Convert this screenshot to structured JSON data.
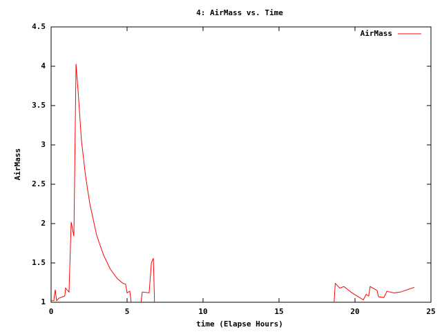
{
  "chart_data": {
    "type": "line",
    "title": "4: AirMass vs. Time",
    "x_label": "time (Elapse Hours)",
    "y_label": "AirMass",
    "x": [
      0,
      0.18,
      0.27,
      0.36,
      0.5,
      0.9,
      0.95,
      1.18,
      1.32,
      1.5,
      1.64,
      1.77,
      2.0,
      2.27,
      2.55,
      3.0,
      3.45,
      3.9,
      4.36,
      4.73,
      4.9,
      5.0,
      5.18,
      5.27,
      5.4,
      5.85,
      6.0,
      6.45,
      6.6,
      6.73,
      6.82,
      18.6,
      18.7,
      18.9,
      19.0,
      19.27,
      19.8,
      20.55,
      20.73,
      20.9,
      21.0,
      21.45,
      21.55,
      21.9,
      22.1,
      22.55,
      23.0,
      23.9
    ],
    "series": [
      {
        "name": "AirMass",
        "color": "#ff0000",
        "values": [
          1.02,
          1.02,
          1.16,
          1.02,
          1.05,
          1.08,
          1.18,
          1.13,
          2.02,
          1.84,
          4.03,
          3.7,
          3.05,
          2.6,
          2.25,
          1.85,
          1.6,
          1.42,
          1.3,
          1.24,
          1.23,
          1.12,
          1.14,
          1.0,
          0.9,
          0.9,
          1.13,
          1.12,
          1.5,
          1.56,
          0.9,
          0.9,
          1.24,
          1.2,
          1.18,
          1.2,
          1.12,
          1.03,
          1.1,
          1.08,
          1.2,
          1.15,
          1.07,
          1.06,
          1.14,
          1.12,
          1.13,
          1.19
        ]
      }
    ],
    "xlim": [
      0,
      25
    ],
    "xticks": [
      0,
      5,
      10,
      15,
      20,
      25
    ],
    "ylim": [
      1,
      4.5
    ],
    "yticks": [
      1,
      1.5,
      2,
      2.5,
      3,
      3.5,
      4,
      4.5
    ],
    "grid": false,
    "legend": "top-right"
  }
}
